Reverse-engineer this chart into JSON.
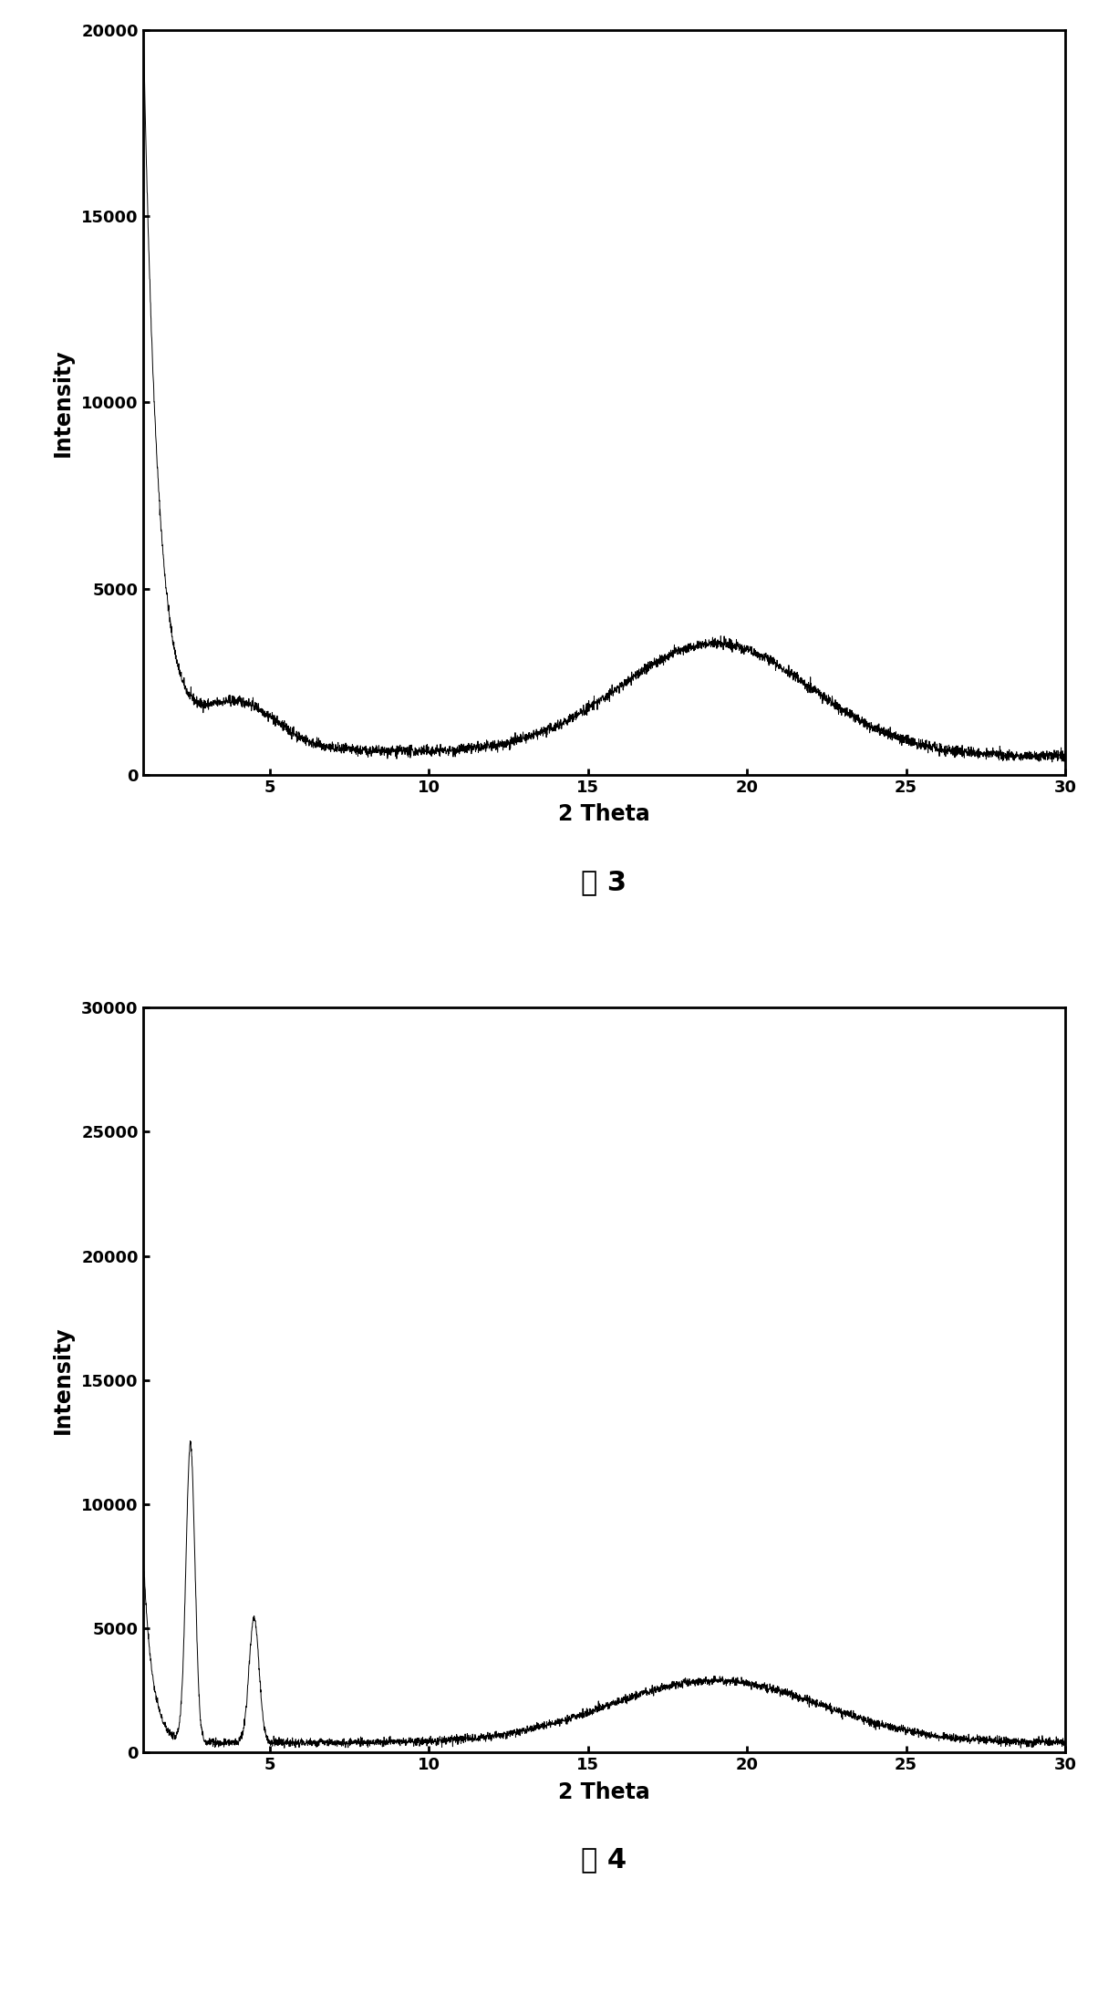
{
  "plot1": {
    "xlabel": "2 Theta",
    "ylabel": "Intensity",
    "xlim": [
      1,
      30
    ],
    "ylim": [
      0,
      20000
    ],
    "yticks": [
      0,
      5000,
      10000,
      15000,
      20000
    ],
    "xticks": [
      5,
      10,
      15,
      20,
      25,
      30
    ],
    "caption": "图 3",
    "line_color": "#000000",
    "bg_color": "#ffffff"
  },
  "plot2": {
    "xlabel": "2 Theta",
    "ylabel": "Intensity",
    "xlim": [
      1,
      30
    ],
    "ylim": [
      0,
      30000
    ],
    "yticks": [
      0,
      5000,
      10000,
      15000,
      20000,
      25000,
      30000
    ],
    "xticks": [
      5,
      10,
      15,
      20,
      25,
      30
    ],
    "caption": "图 4",
    "line_color": "#000000",
    "bg_color": "#ffffff"
  }
}
